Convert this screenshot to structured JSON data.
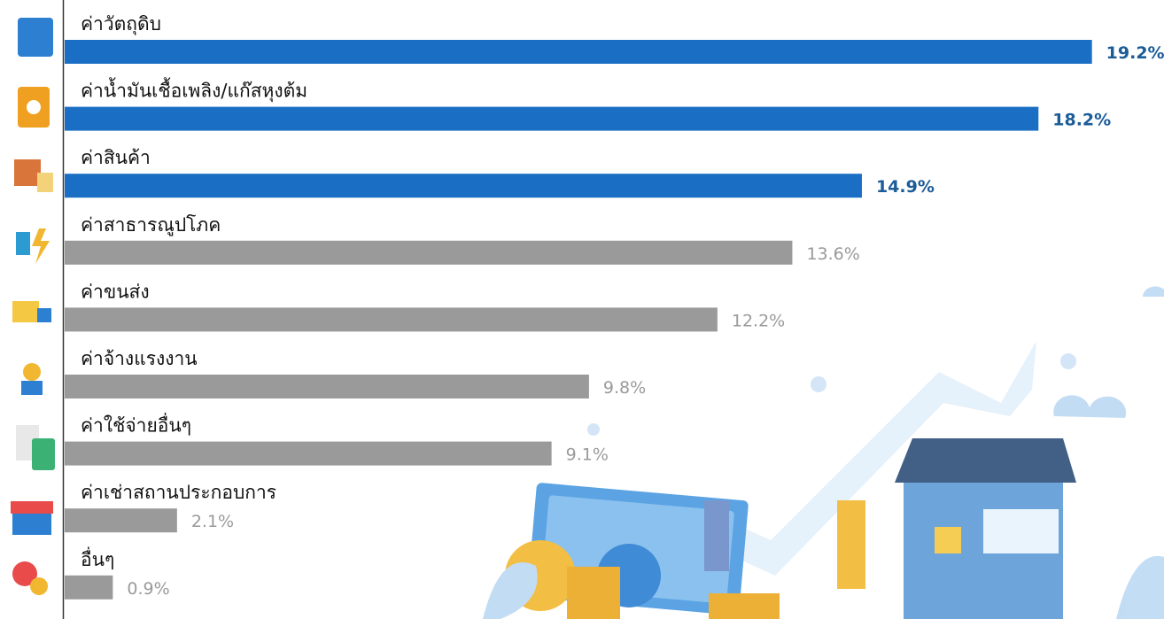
{
  "chart_data": {
    "type": "hbar",
    "categories": [
      "ค่าวัตถุดิบ",
      "ค่าน้ำมันเชื้อเพลิง/แก๊สหุงต้ม",
      "ค่าสินค้า",
      "ค่าสาธารณูปโภค",
      "ค่าขนส่ง",
      "ค่าจ้างแรงงาน",
      "ค่าใช้จ่ายอื่นๆ",
      "ค่าเช่าสถานประกอบการ",
      "อื่นๆ"
    ],
    "values": [
      19.2,
      18.2,
      14.9,
      13.6,
      12.2,
      9.8,
      9.1,
      2.1,
      0.9
    ],
    "value_labels": [
      "19.2%",
      "18.2%",
      "14.9%",
      "13.6%",
      "12.2%",
      "9.8%",
      "9.1%",
      "2.1%",
      "0.9%"
    ],
    "colors": [
      "#1a6fc4",
      "#1a6fc4",
      "#1a6fc4",
      "#9a9a9a",
      "#9a9a9a",
      "#9a9a9a",
      "#9a9a9a",
      "#9a9a9a",
      "#9a9a9a"
    ],
    "label_colors": [
      "#1b5c98",
      "#1b5c98",
      "#1b5c98",
      "#9a9a9a",
      "#9a9a9a",
      "#9a9a9a",
      "#9a9a9a",
      "#9a9a9a",
      "#9a9a9a"
    ]
  }
}
